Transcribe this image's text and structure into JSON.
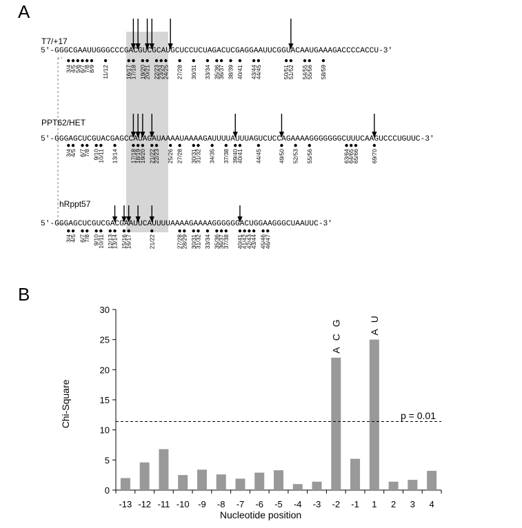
{
  "panel_a": {
    "label": "A",
    "sequences": [
      {
        "name": "T7/+17",
        "text": "5'-GGGCGAAUUGGGCCCGACGUCGCAUGCUCCUCUAGACUCGAGGAAUUCGGUACAAUGAAAGACCCCACCU-3'",
        "arrows_after": [
          17,
          18,
          20,
          21,
          25,
          51
        ],
        "dots_after": [
          3,
          4,
          5,
          6,
          7,
          8,
          11,
          16,
          17,
          19,
          20,
          22,
          23,
          24,
          27,
          30,
          33,
          35,
          36,
          38,
          40,
          43,
          44,
          50,
          51,
          54,
          55,
          58
        ],
        "labels": [
          "3/4",
          "4/5",
          "5/6",
          "6/7",
          "7/8",
          "8/9",
          "11/12",
          "16/17",
          "17/18",
          "19/20",
          "20/21",
          "22/23",
          "23/24",
          "24/25",
          "27/28",
          "30/31",
          "33/34",
          "35/36",
          "36/37",
          "38/39",
          "40/41",
          "43/44",
          "44/45",
          "50/51",
          "51/52",
          "54/55",
          "55/56",
          "58/59"
        ]
      },
      {
        "name": "PPT62/HET",
        "text": "5'-GGGAGCUCGUACGAGCCAUAGAUAAAAUAAAAGAUUUUAUUUAGUCUCCAGAAAAGGGGGGGCUUUCAAGUCCCUGUUC-3'",
        "arrows_after": [
          17,
          18,
          19,
          21,
          39,
          49,
          69
        ],
        "dots_after": [
          3,
          4,
          6,
          7,
          9,
          10,
          13,
          17,
          18,
          19,
          21,
          22,
          25,
          27,
          30,
          31,
          34,
          37,
          39,
          40,
          44,
          49,
          52,
          55,
          63,
          64,
          65,
          69
        ],
        "labels": [
          "3/4",
          "4/5",
          "6/7",
          "7/8",
          "9/10",
          "10/11",
          "13/14",
          "17/18",
          "18/19",
          "19/20",
          "21/22",
          "22/23",
          "25/26",
          "27/28",
          "30/31",
          "31/32",
          "34/35",
          "37/38",
          "39/40",
          "40/41",
          "44/45",
          "49/50",
          "52/53",
          "55/56",
          "63/64",
          "64/65",
          "65/66",
          "69/70"
        ]
      },
      {
        "name": "hRppt57",
        "text": "5'-GGGAGCUCGUCGACGAAUUCAUUUUAAAAGAAAAGGGGGGACUGGAAGGGCUAAUUC-3'",
        "arrows_after": [
          13,
          15,
          16,
          18,
          21,
          40
        ],
        "dots_after": [
          3,
          4,
          6,
          7,
          9,
          10,
          12,
          13,
          15,
          16,
          21,
          27,
          28,
          30,
          31,
          33,
          35,
          36,
          37,
          40,
          41,
          42,
          43,
          45,
          46
        ],
        "labels": [
          "3/4",
          "4/5",
          "6/7",
          "7/8",
          "9/10",
          "10/11",
          "12/13",
          "13/14",
          "15/16",
          "16/17",
          "21/22",
          "27/28",
          "28/29",
          "30/31",
          "31/32",
          "33/34",
          "35/36",
          "36/37",
          "37/38",
          "40/41",
          "41/42",
          "42/43",
          "43/44",
          "45/46",
          "46/47"
        ]
      }
    ]
  },
  "panel_b": {
    "label": "B",
    "threshold_label": "p = 0.01"
  },
  "chart_data": {
    "type": "bar",
    "title": "",
    "xlabel": "Nucleotide position",
    "ylabel": "Chi-Square",
    "categories": [
      "-13",
      "-12",
      "-11",
      "-10",
      "-9",
      "-8",
      "-7",
      "-6",
      "-5",
      "-4",
      "-3",
      "-2",
      "-1",
      "1",
      "2",
      "3",
      "4"
    ],
    "values": [
      2.0,
      4.6,
      6.8,
      2.5,
      3.4,
      2.6,
      1.9,
      2.9,
      3.3,
      1.0,
      1.4,
      22.0,
      5.2,
      25.0,
      1.4,
      1.7,
      3.2
    ],
    "ylim": [
      0,
      30
    ],
    "yticks": [
      0,
      5,
      10,
      15,
      20,
      25,
      30
    ],
    "threshold": 11.4,
    "threshold_label": "p = 0.01",
    "annotations": [
      {
        "category": "-2",
        "text": "ACG"
      },
      {
        "category": "1",
        "text": "AU"
      }
    ],
    "bar_color": "#999999",
    "grid": false
  }
}
